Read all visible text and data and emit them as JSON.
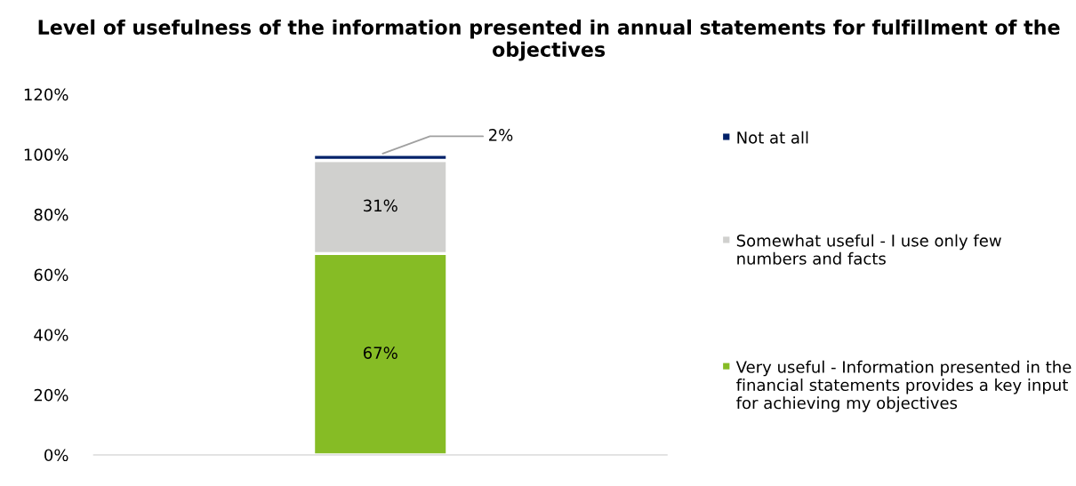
{
  "chart_data": {
    "type": "bar",
    "stacked": true,
    "title": "Level of usefulness of the information presented in annual statements for fulfillment of the objectives",
    "categories": [
      null
    ],
    "series": [
      {
        "name": "Very useful - Information presented in the financial statements provides a key input for achieving my objectives",
        "color": "#86bc25",
        "values": [
          67
        ],
        "value_labels": [
          "67%"
        ]
      },
      {
        "name": "Somewhat useful - I use only few numbers and facts",
        "color": "#d0d0ce",
        "values": [
          31
        ],
        "value_labels": [
          "31%"
        ]
      },
      {
        "name": "Not at all",
        "color": "#012169",
        "values": [
          2
        ],
        "value_labels": [
          "2%"
        ]
      }
    ],
    "ylim": [
      0,
      120
    ],
    "yticks": [
      {
        "value": 0,
        "label": "0%"
      },
      {
        "value": 20,
        "label": "20%"
      },
      {
        "value": 40,
        "label": "40%"
      },
      {
        "value": 60,
        "label": "60%"
      },
      {
        "value": 80,
        "label": "80%"
      },
      {
        "value": 100,
        "label": "100%"
      },
      {
        "value": 120,
        "label": "120%"
      }
    ],
    "grid": false,
    "legend": "right"
  }
}
